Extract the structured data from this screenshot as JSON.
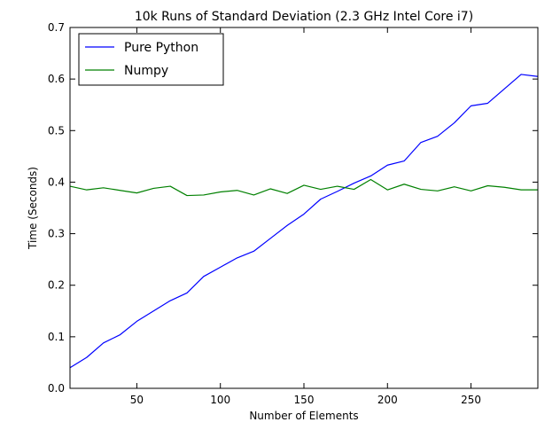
{
  "chart_data": {
    "type": "line",
    "title": "10k Runs of Standard Deviation (2.3 GHz Intel Core i7)",
    "xlabel": "Number of Elements",
    "ylabel": "Time (Seconds)",
    "xlim": [
      10,
      290
    ],
    "ylim": [
      0.0,
      0.7
    ],
    "xticks": [
      50,
      100,
      150,
      200,
      250
    ],
    "xtick_labels": [
      "50",
      "100",
      "150",
      "200",
      "250"
    ],
    "yticks": [
      0.0,
      0.1,
      0.2,
      0.3,
      0.4,
      0.5,
      0.6,
      0.7
    ],
    "ytick_labels": [
      "0.0",
      "0.1",
      "0.2",
      "0.3",
      "0.4",
      "0.5",
      "0.6",
      "0.7"
    ],
    "grid": false,
    "legend_position": "top-left",
    "x": [
      10,
      20,
      30,
      40,
      50,
      60,
      70,
      80,
      90,
      100,
      110,
      120,
      130,
      140,
      150,
      160,
      170,
      180,
      190,
      200,
      210,
      220,
      230,
      240,
      250,
      260,
      270,
      280,
      290
    ],
    "series": [
      {
        "name": "Pure Python",
        "color": "#0000ff",
        "values": [
          0.04,
          0.06,
          0.088,
          0.104,
          0.13,
          0.15,
          0.17,
          0.185,
          0.217,
          0.235,
          0.253,
          0.266,
          0.291,
          0.316,
          0.338,
          0.367,
          0.382,
          0.398,
          0.412,
          0.433,
          0.441,
          0.477,
          0.489,
          0.515,
          0.548,
          0.553,
          0.581,
          0.609,
          0.605
        ]
      },
      {
        "name": "Numpy",
        "color": "#008000",
        "values": [
          0.392,
          0.385,
          0.389,
          0.384,
          0.379,
          0.388,
          0.392,
          0.374,
          0.375,
          0.381,
          0.384,
          0.375,
          0.387,
          0.378,
          0.394,
          0.386,
          0.392,
          0.386,
          0.405,
          0.385,
          0.396,
          0.386,
          0.383,
          0.391,
          0.383,
          0.393,
          0.39,
          0.385,
          0.385
        ]
      }
    ]
  }
}
